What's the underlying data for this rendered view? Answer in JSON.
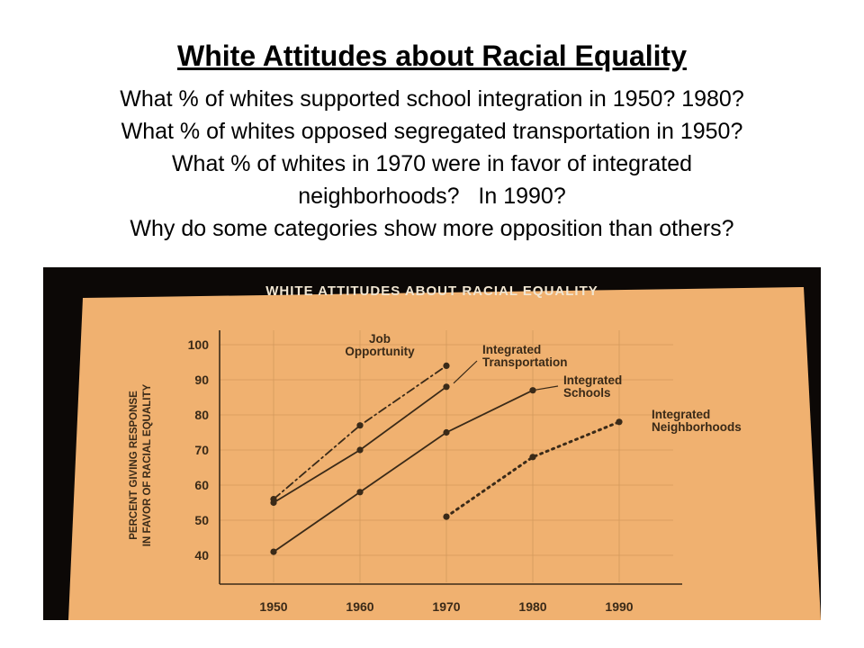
{
  "slide": {
    "title": "White Attitudes about Racial Equality",
    "questions": [
      "What % of whites supported school integration in 1950? 1980?",
      "What % of whites opposed segregated transportation in 1950?",
      "What % of whites in 1970 were in favor of integrated",
      "neighborhoods?   In 1990?",
      "Why do some categories show more opposition than others?"
    ]
  },
  "chart_data": {
    "type": "line",
    "title": "WHITE ATTITUDES ABOUT RACIAL EQUALITY",
    "ylabel": [
      "PERCENT GIVING RESPONSE",
      "IN FAVOR OF RACIAL EQUALITY"
    ],
    "xlabel": "",
    "x": [
      1950,
      1960,
      1970,
      1980,
      1990
    ],
    "xlim": [
      1950,
      1990
    ],
    "ylim": [
      40,
      100
    ],
    "yticks": [
      100,
      90,
      80,
      70,
      60,
      50,
      40
    ],
    "grid": true,
    "series": [
      {
        "name": "Job Opportunity",
        "label_lines": [
          "Job",
          "Opportunity"
        ],
        "x": [
          1950,
          1960,
          1970
        ],
        "y": [
          56,
          77,
          94
        ],
        "style": "dashdot",
        "color": "#3a2a18"
      },
      {
        "name": "Integrated Transportation",
        "label_lines": [
          "Integrated",
          "Transportation"
        ],
        "x": [
          1950,
          1960,
          1970
        ],
        "y": [
          55,
          70,
          88
        ],
        "style": "solid",
        "color": "#3a2a18"
      },
      {
        "name": "Integrated Schools",
        "label_lines": [
          "Integrated",
          "Schools"
        ],
        "x": [
          1950,
          1960,
          1970,
          1980
        ],
        "y": [
          41,
          58,
          75,
          87
        ],
        "style": "solid",
        "color": "#3a2a18"
      },
      {
        "name": "Integrated Neighborhoods",
        "label_lines": [
          "Integrated",
          "Neighborhoods"
        ],
        "x": [
          1970,
          1980,
          1990
        ],
        "y": [
          51,
          68,
          78
        ],
        "style": "dotted",
        "color": "#3a2a18"
      }
    ]
  },
  "colors": {
    "paper": "#f0b170",
    "background": "#0c0806",
    "ink": "#3a2a18",
    "photo_title": "#f1e6d2"
  }
}
